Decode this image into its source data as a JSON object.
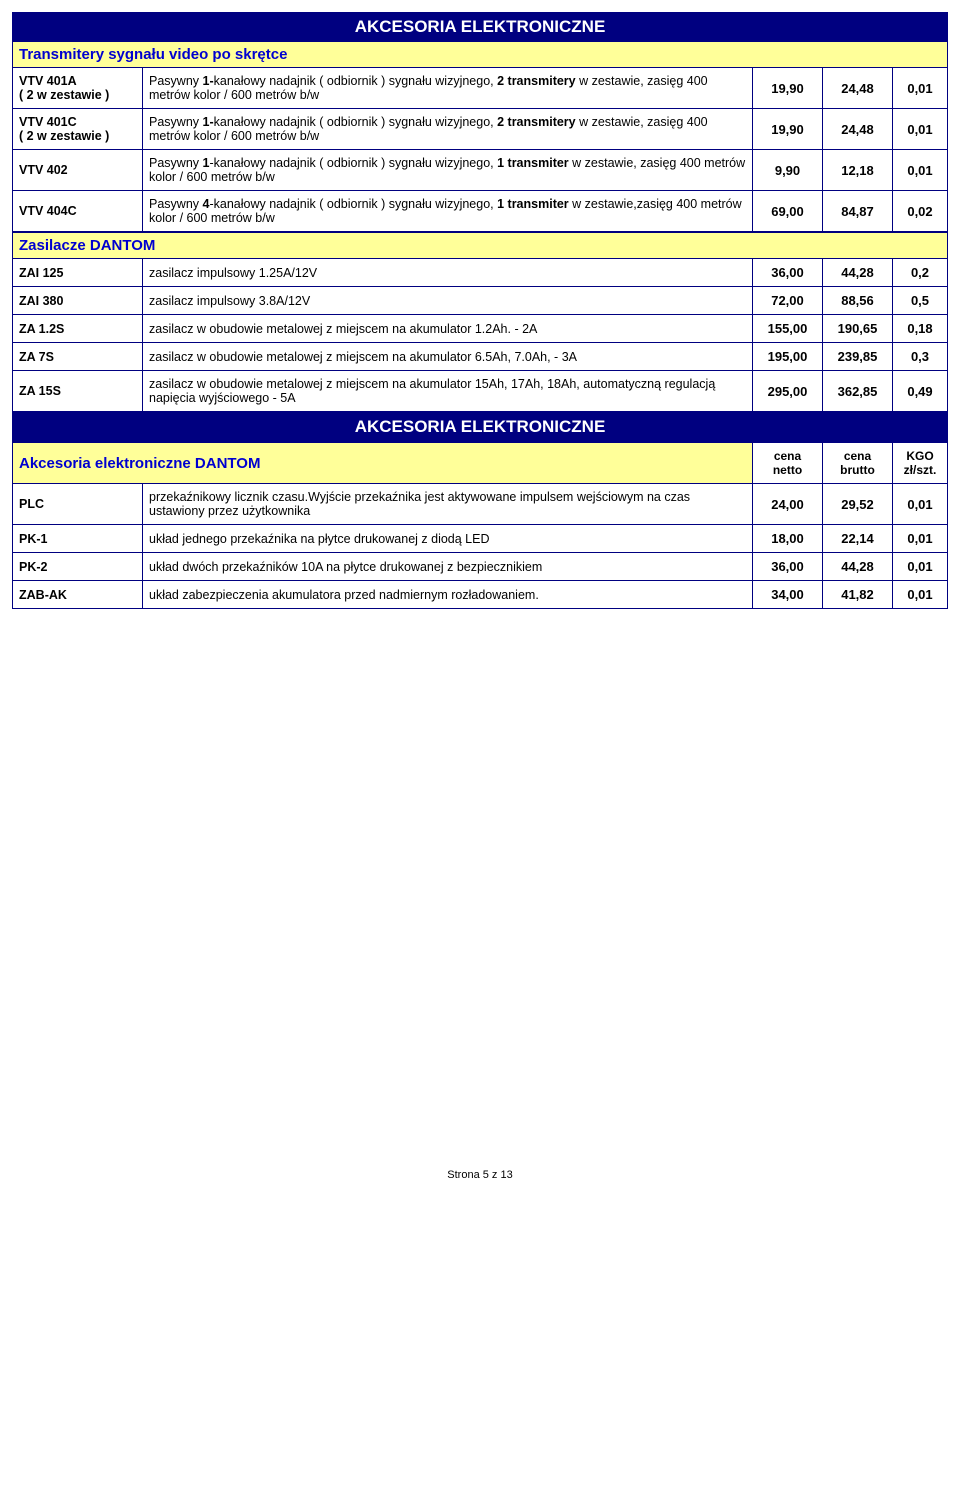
{
  "colors": {
    "banner_bg": "#000080",
    "banner_text": "#ffffff",
    "yellow_bg": "#ffff99",
    "yellow_text": "#0000d0",
    "border": "#000080",
    "body_bg": "#ffffff",
    "text": "#000000"
  },
  "banner_title": "AKCESORIA ELEKTRONICZNE",
  "section1": {
    "title": "Transmitery sygnału video po skrętce",
    "rows": [
      {
        "code": "VTV 401A",
        "code_sub": "( 2 w zestawie )",
        "desc_pre": "Pasywny ",
        "desc_b1": "1-",
        "desc_mid1": "kanałowy nadajnik ( odbiornik ) sygnału wizyjnego, ",
        "desc_b2": "2 transmitery",
        "desc_mid2": " w zestawie, zasięg 400 metrów kolor / 600 metrów b/w",
        "n1": "19,90",
        "n2": "24,48",
        "n3": "0,01"
      },
      {
        "code": "VTV 401C",
        "code_sub": "( 2 w zestawie )",
        "desc_pre": "Pasywny ",
        "desc_b1": "1-",
        "desc_mid1": "kanałowy nadajnik ( odbiornik ) sygnału wizyjnego, ",
        "desc_b2": "2 transmitery",
        "desc_mid2": " w zestawie, zasięg 400 metrów kolor / 600 metrów b/w",
        "n1": "19,90",
        "n2": "24,48",
        "n3": "0,01"
      },
      {
        "code": "VTV 402",
        "code_sub": "",
        "desc_pre": "Pasywny ",
        "desc_b1": "1",
        "desc_mid1": "-kanałowy nadajnik ( odbiornik ) sygnału wizyjnego, ",
        "desc_b2": "1 transmiter",
        "desc_mid2": " w zestawie, zasięg 400 metrów kolor / 600 metrów b/w",
        "n1": "9,90",
        "n2": "12,18",
        "n3": "0,01"
      },
      {
        "code": "VTV 404C",
        "code_sub": "",
        "desc_pre": "Pasywny ",
        "desc_b1": "4",
        "desc_mid1": "-kanałowy nadajnik ( odbiornik ) sygnału wizyjnego, ",
        "desc_b2": "1 transmiter",
        "desc_mid2": " w zestawie,zasięg 400 metrów kolor / 600 metrów b/w",
        "n1": "69,00",
        "n2": "84,87",
        "n3": "0,02"
      }
    ]
  },
  "section2": {
    "title": "Zasilacze  DANTOM",
    "rows": [
      {
        "code": "ZAI 125",
        "desc": "zasilacz impulsowy 1.25A/12V",
        "n1": "36,00",
        "n2": "44,28",
        "n3": "0,2"
      },
      {
        "code": "ZAI 380",
        "desc": "zasilacz impulsowy 3.8A/12V",
        "n1": "72,00",
        "n2": "88,56",
        "n3": "0,5"
      },
      {
        "code": "ZA 1.2S",
        "desc": "zasilacz  w obudowie metalowej z miejscem na akumulator 1.2Ah. - 2A",
        "n1": "155,00",
        "n2": "190,65",
        "n3": "0,18"
      },
      {
        "code": "ZA 7S",
        "desc": "zasilacz w obudowie metalowej z miejscem na akumulator 6.5Ah, 7.0Ah,  - 3A",
        "n1": "195,00",
        "n2": "239,85",
        "n3": "0,3"
      },
      {
        "code": "ZA 15S",
        "desc": "zasilacz w obudowie metalowej z miejscem na akumulator 15Ah, 17Ah, 18Ah, automatyczną regulacją napięcia wyjściowego - 5A",
        "n1": "295,00",
        "n2": "362,85",
        "n3": "0,49"
      }
    ]
  },
  "banner2": "AKCESORIA ELEKTRONICZNE",
  "section3": {
    "title": "Akcesoria elektroniczne DANTOM",
    "hdr1": "cena netto",
    "hdr2": "cena brutto",
    "hdr3": "KGO zł/szt.",
    "rows": [
      {
        "code": "PLC",
        "desc": "przekaźnikowy licznik czasu.Wyjście przekaźnika jest aktywowane impulsem wejściowym na czas ustawiony przez użytkownika",
        "n1": "24,00",
        "n2": "29,52",
        "n3": "0,01"
      },
      {
        "code": "PK-1",
        "desc": "układ jednego przekaźnika na płytce drukowanej z diodą LED",
        "n1": "18,00",
        "n2": "22,14",
        "n3": "0,01"
      },
      {
        "code": "PK-2",
        "desc": "układ dwóch przekaźników 10A na płytce drukowanej z bezpiecznikiem",
        "n1": "36,00",
        "n2": "44,28",
        "n3": "0,01"
      },
      {
        "code": "ZAB-AK",
        "desc": "układ zabezpieczenia akumulatora przed nadmiernym rozładowaniem.",
        "n1": "34,00",
        "n2": "41,82",
        "n3": "0,01"
      }
    ]
  },
  "footer": "Strona 5 z 13"
}
